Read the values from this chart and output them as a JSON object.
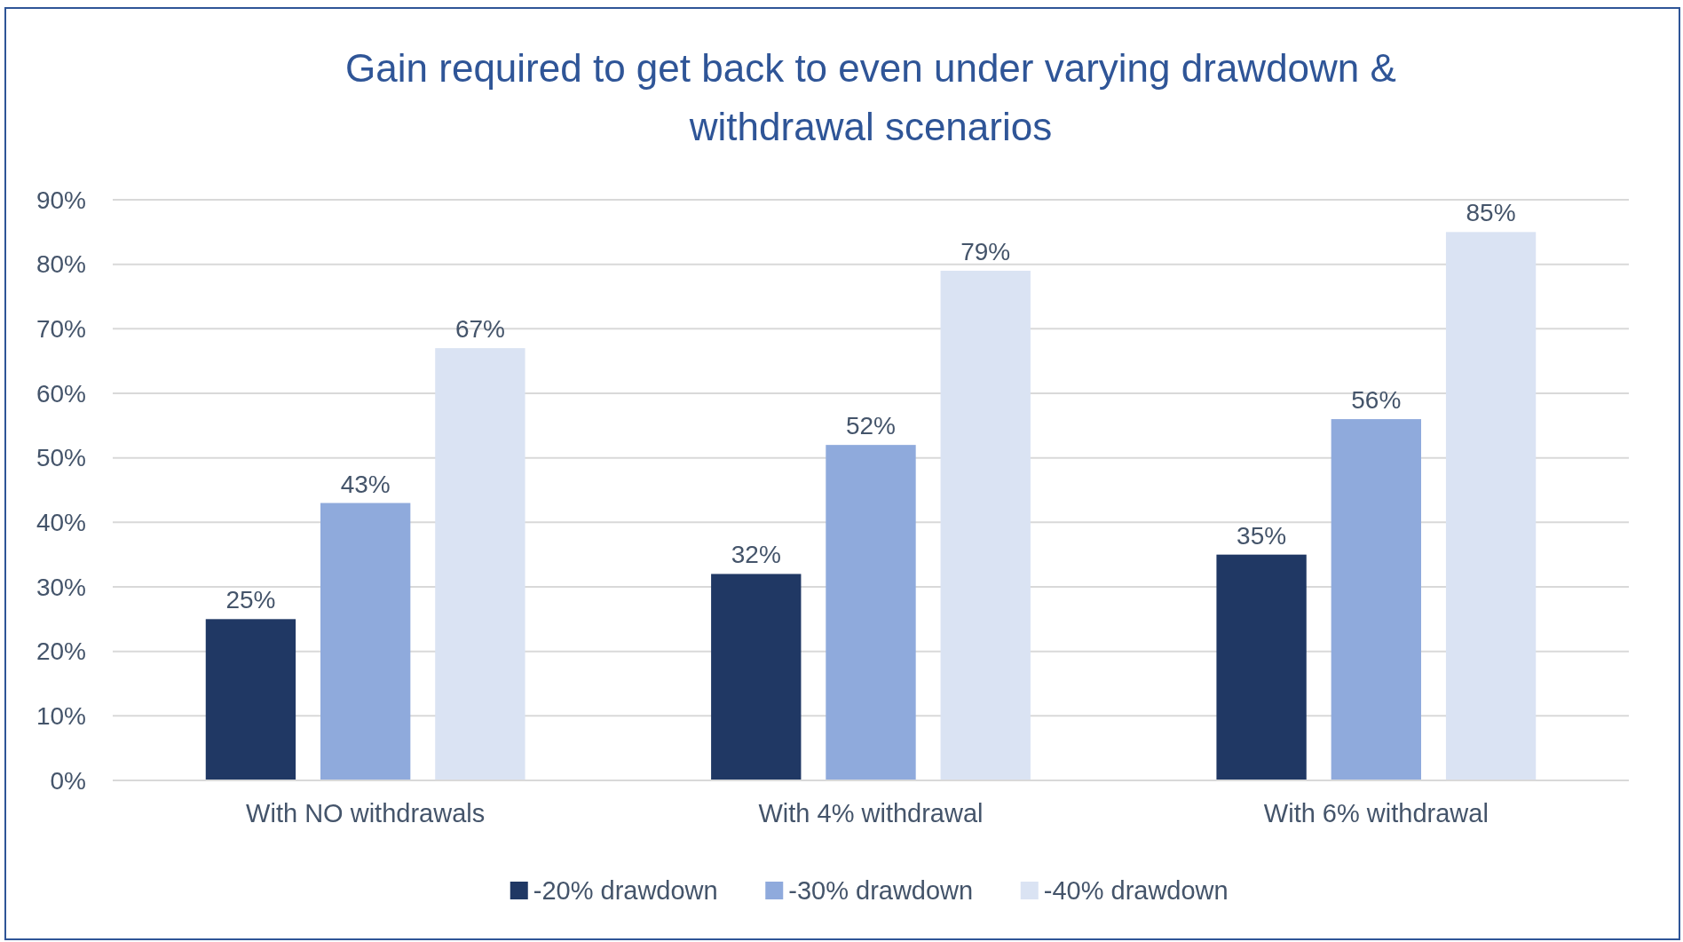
{
  "chart_data": {
    "type": "bar",
    "title": "Gain required to get back to even under varying drawdown & withdrawal scenarios",
    "categories": [
      "With NO withdrawals",
      "With 4% withdrawal",
      "With 6% withdrawal"
    ],
    "series": [
      {
        "name": "-20% drawdown",
        "color": "#203864",
        "values": [
          25,
          32,
          35
        ],
        "value_labels": [
          "25%",
          "32%",
          "35%"
        ]
      },
      {
        "name": "-30% drawdown",
        "color": "#8faadc",
        "values": [
          43,
          52,
          56
        ],
        "value_labels": [
          "43%",
          "52%",
          "56%"
        ]
      },
      {
        "name": "-40% drawdown",
        "color": "#dae3f3",
        "values": [
          67,
          79,
          85
        ],
        "value_labels": [
          "67%",
          "79%",
          "85%"
        ]
      }
    ],
    "ylim": [
      0,
      90
    ],
    "yticks": [
      {
        "value": 0,
        "label": "0%"
      },
      {
        "value": 10,
        "label": "10%"
      },
      {
        "value": 20,
        "label": "20%"
      },
      {
        "value": 30,
        "label": "30%"
      },
      {
        "value": 40,
        "label": "40%"
      },
      {
        "value": 50,
        "label": "50%"
      },
      {
        "value": 60,
        "label": "60%"
      },
      {
        "value": 70,
        "label": "70%"
      },
      {
        "value": 80,
        "label": "80%"
      },
      {
        "value": 90,
        "label": "90%"
      }
    ],
    "grid": "y",
    "legend": "bottom"
  }
}
